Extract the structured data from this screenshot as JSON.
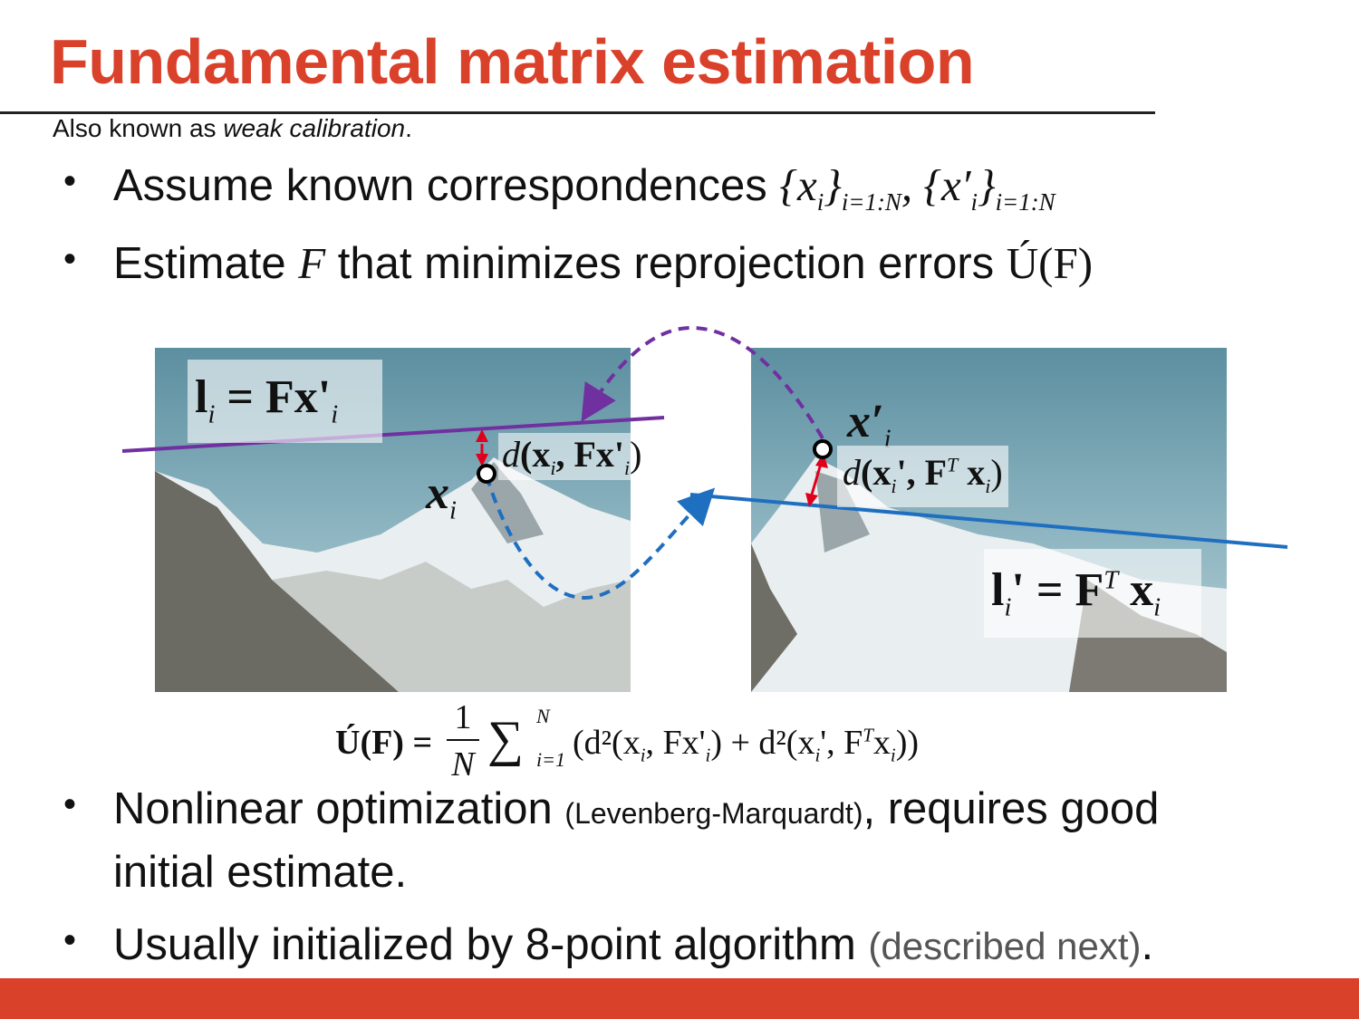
{
  "title": "Fundamental matrix estimation",
  "subtitle": {
    "prefix": "Also known as ",
    "emphasis": "weak calibration",
    "suffix": "."
  },
  "bullets": {
    "b1_text": "Assume known correspondences ",
    "b1_math_a": "{x",
    "b1_math_a_sub": "i",
    "b1_math_a_close": "}",
    "b1_range": "i=1:N",
    "b1_sep": ", ",
    "b1_math_b": "{x′",
    "b1_math_b_sub": "i",
    "b1_math_b_close": "}",
    "b2_text_a": "Estimate ",
    "b2_F": "F",
    "b2_text_b": " that minimizes reprojection errors ",
    "b2_err": "Ú(F)",
    "b3_text_a": "Nonlinear optimization ",
    "b3_small": "(Levenberg-Marquardt)",
    "b3_text_b": ", requires good",
    "b3_line2": "initial estimate.",
    "b4_text": "Usually initialized by 8-point algorithm ",
    "b4_grey": "(described next)",
    "b4_end": "."
  },
  "labels": {
    "li": "l",
    "li_eq": " = Fx'",
    "i": "i",
    "xi": "x",
    "xpi": "x′",
    "d_left_a": "d",
    "d_left_b": "(x",
    "d_left_c": ", Fx'",
    "d_left_d": ")",
    "d_right_a": "d",
    "d_right_b": "(x",
    "d_right_c": "', F",
    "d_right_T": "T",
    "d_right_d": " x",
    "d_right_e": ")",
    "lpi": "l",
    "lpi_eq": "' = F",
    "lpi_x": " x"
  },
  "equation": {
    "lhs": "Ú(F) = ",
    "num": "1",
    "den": "N",
    "sum": "∑",
    "sum_top": "N",
    "sum_bot": "i=1",
    "body": "(d²(x",
    "body2": ", Fx'",
    "body3": ") + d²(x",
    "body4": "', F",
    "body5": "T",
    "body6": "x",
    "body7": "))"
  },
  "colors": {
    "accent": "#d9412b",
    "purple": "#7030a0",
    "blue": "#1f6fc0",
    "red": "#e0001b"
  }
}
